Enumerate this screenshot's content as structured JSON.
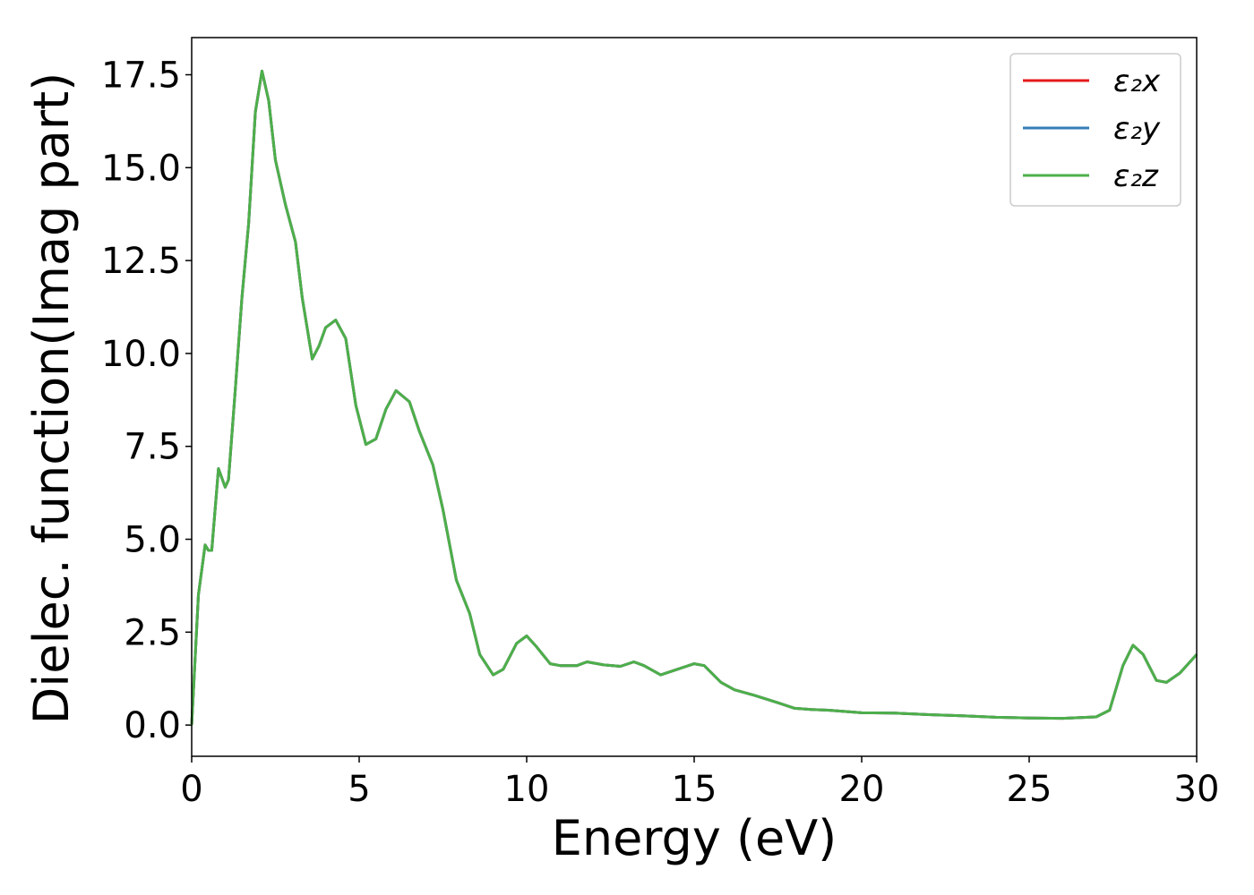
{
  "chart_data": {
    "type": "line",
    "xlabel": "Energy (eV)",
    "ylabel": "Dielec. function(Imag part)",
    "x": [
      0,
      0.2,
      0.4,
      0.5,
      0.6,
      0.8,
      1.0,
      1.1,
      1.3,
      1.5,
      1.7,
      1.9,
      2.1,
      2.3,
      2.5,
      2.8,
      3.1,
      3.3,
      3.6,
      3.8,
      4.0,
      4.3,
      4.6,
      4.9,
      5.2,
      5.5,
      5.8,
      6.1,
      6.5,
      6.8,
      7.2,
      7.5,
      7.9,
      8.3,
      8.6,
      9.0,
      9.3,
      9.7,
      10.0,
      10.3,
      10.7,
      11.0,
      11.5,
      11.8,
      12.3,
      12.8,
      13.2,
      13.5,
      14.0,
      14.5,
      15.0,
      15.3,
      15.8,
      16.2,
      16.8,
      17.5,
      18.0,
      18.5,
      19.0,
      20.0,
      21.0,
      22.0,
      23.0,
      24.0,
      25.0,
      26.0,
      27.0,
      27.4,
      27.8,
      28.1,
      28.4,
      28.8,
      29.1,
      29.5,
      30.0
    ],
    "series": [
      {
        "name": "ε₂x",
        "color": "#e41a1c",
        "values": [
          0,
          3.5,
          4.85,
          4.7,
          4.7,
          6.9,
          6.4,
          6.6,
          9,
          11.5,
          13.5,
          16.5,
          17.6,
          16.8,
          15.2,
          14,
          13,
          11.5,
          9.85,
          10.2,
          10.7,
          10.9,
          10.4,
          8.6,
          7.55,
          7.7,
          8.5,
          9.0,
          8.7,
          7.9,
          7.0,
          5.8,
          3.9,
          3.0,
          1.9,
          1.35,
          1.5,
          2.2,
          2.4,
          2.1,
          1.65,
          1.6,
          1.6,
          1.7,
          1.62,
          1.58,
          1.7,
          1.6,
          1.35,
          1.5,
          1.65,
          1.6,
          1.15,
          0.95,
          0.8,
          0.6,
          0.45,
          0.42,
          0.4,
          0.33,
          0.32,
          0.28,
          0.25,
          0.21,
          0.19,
          0.18,
          0.22,
          0.4,
          1.6,
          2.15,
          1.9,
          1.2,
          1.15,
          1.4,
          1.9
        ]
      },
      {
        "name": "ε₂y",
        "color": "#377eb8",
        "values": [
          0,
          3.5,
          4.85,
          4.7,
          4.7,
          6.9,
          6.4,
          6.6,
          9,
          11.5,
          13.5,
          16.5,
          17.6,
          16.8,
          15.2,
          14,
          13,
          11.5,
          9.85,
          10.2,
          10.7,
          10.9,
          10.4,
          8.6,
          7.55,
          7.7,
          8.5,
          9.0,
          8.7,
          7.9,
          7.0,
          5.8,
          3.9,
          3.0,
          1.9,
          1.35,
          1.5,
          2.2,
          2.4,
          2.1,
          1.65,
          1.6,
          1.6,
          1.7,
          1.62,
          1.58,
          1.7,
          1.6,
          1.35,
          1.5,
          1.65,
          1.6,
          1.15,
          0.95,
          0.8,
          0.6,
          0.45,
          0.42,
          0.4,
          0.33,
          0.32,
          0.28,
          0.25,
          0.21,
          0.19,
          0.18,
          0.22,
          0.4,
          1.6,
          2.15,
          1.9,
          1.2,
          1.15,
          1.4,
          1.9
        ]
      },
      {
        "name": "ε₂z",
        "color": "#4daf4a",
        "values": [
          0,
          3.5,
          4.85,
          4.7,
          4.7,
          6.9,
          6.4,
          6.6,
          9,
          11.5,
          13.5,
          16.5,
          17.6,
          16.8,
          15.2,
          14,
          13,
          11.5,
          9.85,
          10.2,
          10.7,
          10.9,
          10.4,
          8.6,
          7.55,
          7.7,
          8.5,
          9.0,
          8.7,
          7.9,
          7.0,
          5.8,
          3.9,
          3.0,
          1.9,
          1.35,
          1.5,
          2.2,
          2.4,
          2.1,
          1.65,
          1.6,
          1.6,
          1.7,
          1.62,
          1.58,
          1.7,
          1.6,
          1.35,
          1.5,
          1.65,
          1.6,
          1.15,
          0.95,
          0.8,
          0.6,
          0.45,
          0.42,
          0.4,
          0.33,
          0.32,
          0.28,
          0.25,
          0.21,
          0.19,
          0.18,
          0.22,
          0.4,
          1.6,
          2.15,
          1.9,
          1.2,
          1.15,
          1.4,
          1.9
        ]
      }
    ],
    "xlim": [
      0,
      30
    ],
    "xticks": [
      0,
      5,
      10,
      15,
      20,
      25,
      30
    ],
    "ylim": [
      -0.84,
      18.5
    ],
    "yticks": [
      {
        "value": 0,
        "label": "0.0"
      },
      2.5,
      {
        "value": 5,
        "label": "5.0"
      },
      7.5,
      {
        "value": 10,
        "label": "10.0"
      },
      12.5,
      {
        "value": 15,
        "label": "15.0"
      },
      17.5
    ],
    "legend": "upper right"
  }
}
